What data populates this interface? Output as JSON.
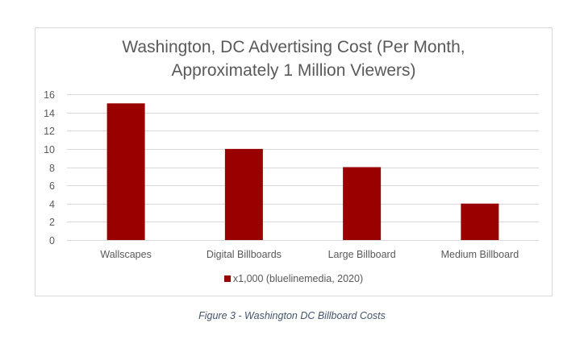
{
  "chart_data": {
    "type": "bar",
    "title": "Washington, DC Advertising Cost (Per Month, Approximately 1 Million Viewers)",
    "title_lines": [
      "Washington, DC Advertising Cost (Per Month,",
      "Approximately 1 Million Viewers)"
    ],
    "categories": [
      "Wallscapes",
      "Digital Billboards",
      "Large Billboard",
      "Medium Billboard"
    ],
    "series": [
      {
        "name": "x1,000 (bluelinemedia, 2020)",
        "values": [
          15,
          10,
          8,
          4
        ],
        "color": "#990000"
      }
    ],
    "xlabel": "",
    "ylabel": "",
    "ylim": [
      0,
      16
    ],
    "yticks": [
      0,
      2,
      4,
      6,
      8,
      10,
      12,
      14,
      16
    ],
    "grid": true,
    "legend_position": "bottom"
  },
  "caption": "Figure 3 - Washington DC Billboard Costs"
}
